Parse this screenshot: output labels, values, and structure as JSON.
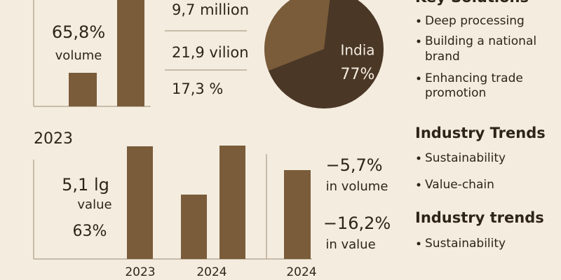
{
  "top_left": {
    "value": "65,8%",
    "caption": "volume"
  },
  "top_middle": {
    "items": [
      "9,7 million",
      "21,9 vilion",
      "17,3 %"
    ]
  },
  "pie": {
    "label": "India",
    "value": "77%"
  },
  "key_solutions": {
    "title": "Key Solutions",
    "lines": [
      "Deep processing",
      "Building a national",
      "brand",
      "Enhancing trade",
      "promotion"
    ]
  },
  "bottom_left": {
    "year": "2023",
    "value": "5,1 lg",
    "caption": "value",
    "share": "63%",
    "x_labels": [
      "2023",
      "2024",
      "2024"
    ]
  },
  "bottom_right": {
    "volume_change": "−5,7%",
    "volume_caption": "in volume",
    "value_change": "−16,2%",
    "value_caption": "in value"
  },
  "industry_trends": {
    "title": "Industry Trends",
    "items": [
      "Sustainability",
      "Value-chain"
    ]
  },
  "industry_trends_2": {
    "title": "Industry trends",
    "items": [
      "Sustainability"
    ]
  }
}
